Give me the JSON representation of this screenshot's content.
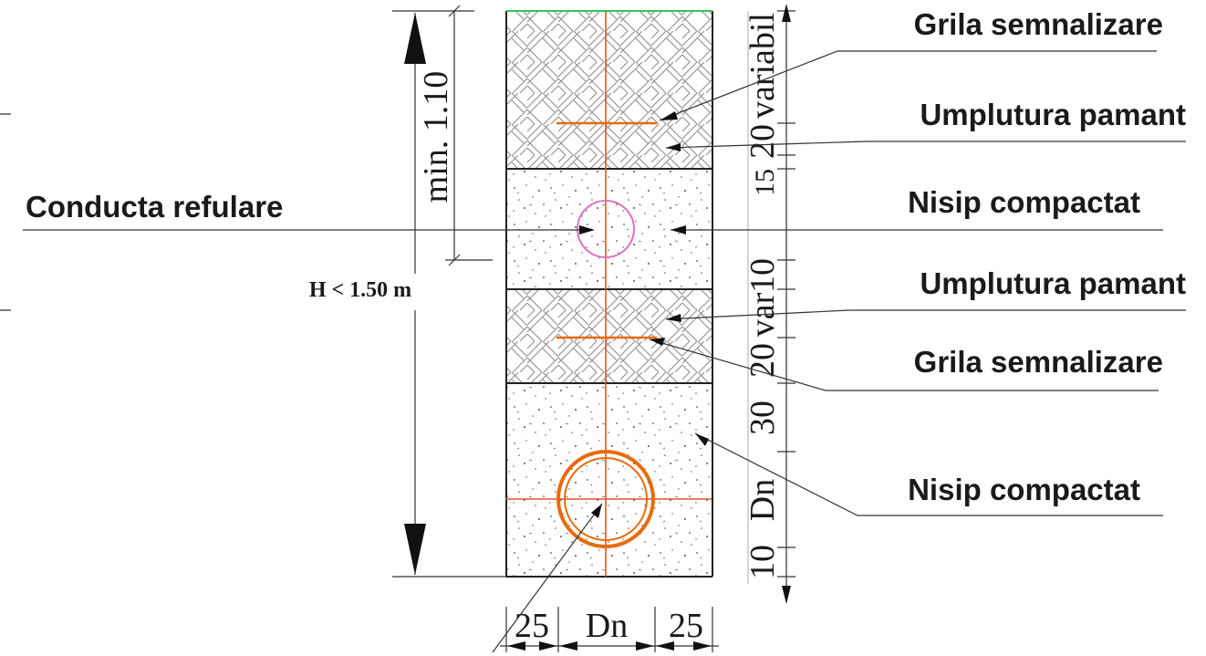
{
  "labels": {
    "grila_top": "Grila semnalizare",
    "umplutura_top": "Umplutura pamant",
    "conducta": "Conducta refulare",
    "nisip_top": "Nisip compactat",
    "umplutura_bottom": "Umplutura pamant",
    "grila_bottom": "Grila semnalizare",
    "nisip_bottom": "Nisip compactat"
  },
  "dimensions": {
    "min_depth": "min. 1.10",
    "h_label": "H < 1.50 m",
    "right_variabil": "variabil",
    "right_20_top": "20",
    "right_15": "15",
    "right_10_top": "10",
    "right_var": "var",
    "right_20_bottom": "20",
    "right_30": "30",
    "right_dn": "Dn",
    "right_10_bottom": "10",
    "bottom_left_25": "25",
    "bottom_dn": "Dn",
    "bottom_right_25": "25"
  },
  "colors": {
    "pipe": "#e86a0c",
    "grid_line": "#e8502a",
    "small_pipe": "#e070c0",
    "surface": "#34c759"
  }
}
